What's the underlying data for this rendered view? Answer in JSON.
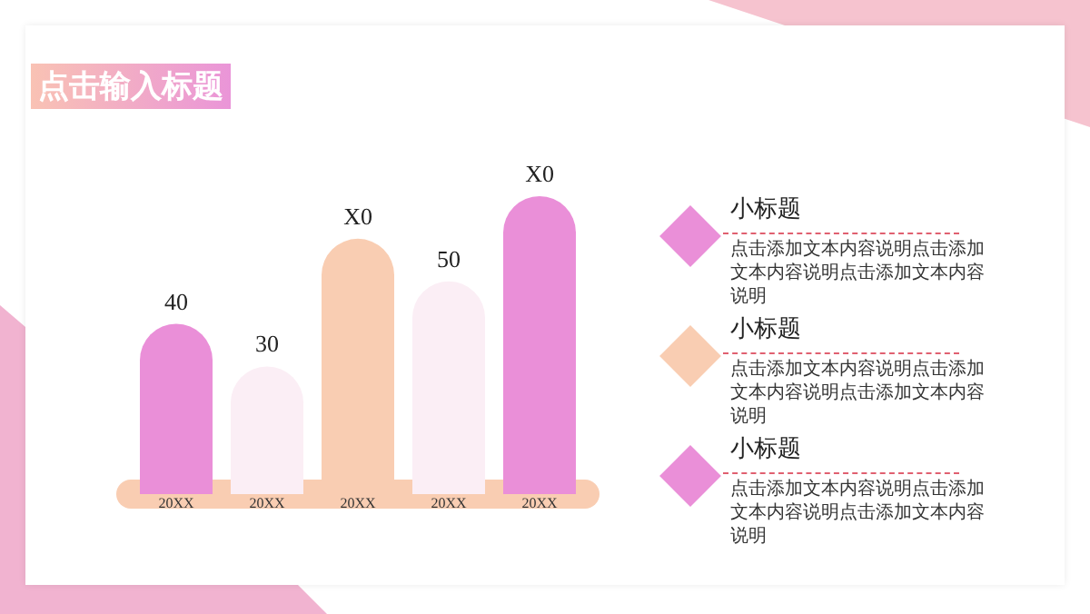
{
  "chart_data": {
    "type": "bar",
    "title": "点击输入标题",
    "categories": [
      "20XX",
      "20XX",
      "20XX",
      "20XX",
      "20XX"
    ],
    "values": [
      40,
      30,
      60,
      50,
      70
    ],
    "colors": [
      "#ea8fd8",
      "#fbeef5",
      "#f9cdb2",
      "#fbeef5",
      "#ea8fd8"
    ],
    "value_labels": [
      "40",
      "30",
      "X0",
      "50",
      "X0"
    ],
    "annotations": [
      "小标题",
      "点击添加文本内容说明点击添加文本内容说明点击添加文本内容说明",
      "小标题",
      "点击添加文本内容说明点击添加文本内容说明点击添加文本内容说明",
      "小标题",
      "点击添加文本内容说明点击添加文本内容说明点击添加文本内容说明"
    ]
  }
}
